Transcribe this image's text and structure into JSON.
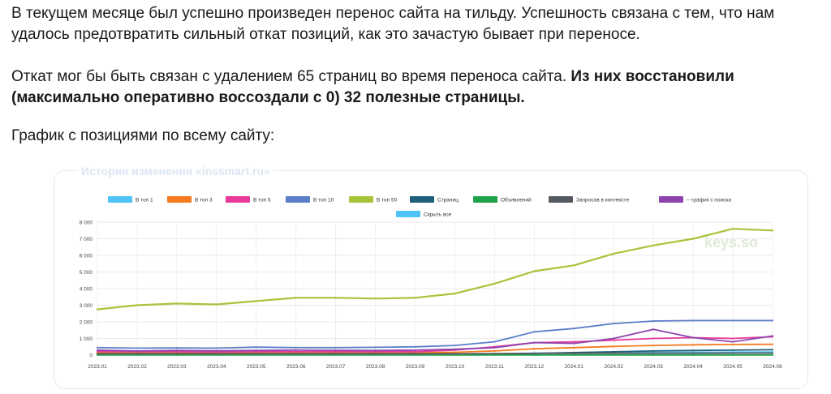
{
  "text": {
    "para1": "В текущем месяце был успешно произведен перенос сайта на тильду. Успешность связана с тем, что нам удалось предотвратить сильный откат позиций, как это зачастую бывает при переносе.",
    "para2_regular": "Откат мог бы быть связан с удалением 65 страниц во время переноса сайта. ",
    "para2_bold": "Из них восстановили (максимально оперативно воссоздали с 0) 32 полезные страницы.",
    "para3": "График с позициями по всему сайту:"
  },
  "chart_data": {
    "type": "line",
    "title": "История изменения «inssmart.ru»",
    "watermark": "keys.so",
    "reset_label": "Скрыть все",
    "x": [
      "2023.01",
      "2023.02",
      "2023.03",
      "2023.04",
      "2023.05",
      "2023.06",
      "2023.07",
      "2023.08",
      "2023.09",
      "2023.10",
      "2023.11",
      "2023.12",
      "2024.01",
      "2024.02",
      "2024.03",
      "2024.04",
      "2024.05",
      "2024.06"
    ],
    "ylim": [
      0,
      8000
    ],
    "yticks": [
      "0",
      "1 000",
      "2 000",
      "3 000",
      "4 000",
      "5 000",
      "6 000",
      "7 000",
      "8 000"
    ],
    "grid": true,
    "legend_position": "top",
    "series": [
      {
        "name": "В топ 1",
        "color": "#4fc3f7",
        "values": [
          60,
          50,
          50,
          50,
          50,
          50,
          50,
          50,
          50,
          60,
          70,
          110,
          130,
          140,
          160,
          170,
          180,
          190
        ]
      },
      {
        "name": "В топ 3",
        "color": "#f47b20",
        "values": [
          150,
          130,
          130,
          130,
          140,
          140,
          140,
          140,
          140,
          170,
          250,
          380,
          450,
          520,
          580,
          620,
          640,
          650
        ]
      },
      {
        "name": "В топ 5",
        "color": "#e8399a",
        "values": [
          220,
          200,
          200,
          190,
          200,
          200,
          200,
          200,
          200,
          300,
          500,
          750,
          800,
          900,
          1000,
          1050,
          1000,
          1100
        ]
      },
      {
        "name": "В топ 10",
        "color": "#5b7ec9",
        "values": [
          450,
          420,
          430,
          420,
          480,
          450,
          450,
          470,
          500,
          580,
          800,
          1400,
          1600,
          1900,
          2050,
          2080,
          2080,
          2080
        ]
      },
      {
        "name": "В топ 50",
        "color": "#a8c43a",
        "values": [
          2750,
          3000,
          3100,
          3050,
          3250,
          3450,
          3450,
          3400,
          3450,
          3700,
          4300,
          5050,
          5400,
          6100,
          6600,
          7000,
          7600,
          7500
        ]
      },
      {
        "name": "Страниц",
        "color": "#1f5f7a",
        "values": [
          30,
          30,
          30,
          30,
          30,
          30,
          30,
          30,
          30,
          30,
          40,
          100,
          150,
          200,
          250,
          280,
          300,
          320
        ]
      },
      {
        "name": "Объявлений",
        "color": "#1fa34a",
        "values": [
          10,
          10,
          10,
          10,
          10,
          10,
          10,
          10,
          10,
          10,
          10,
          10,
          10,
          10,
          10,
          10,
          10,
          10
        ]
      },
      {
        "name": "Запросов в контексте",
        "color": "#555a60",
        "values": [
          80,
          80,
          80,
          80,
          80,
          80,
          80,
          80,
          80,
          80,
          90,
          100,
          100,
          110,
          110,
          110,
          120,
          120
        ]
      },
      {
        "name": "– трафик с поиска",
        "color": "#8e44ad",
        "values": [
          300,
          250,
          280,
          260,
          280,
          300,
          290,
          280,
          300,
          350,
          450,
          750,
          700,
          1000,
          1550,
          1050,
          800,
          1150
        ]
      }
    ]
  }
}
